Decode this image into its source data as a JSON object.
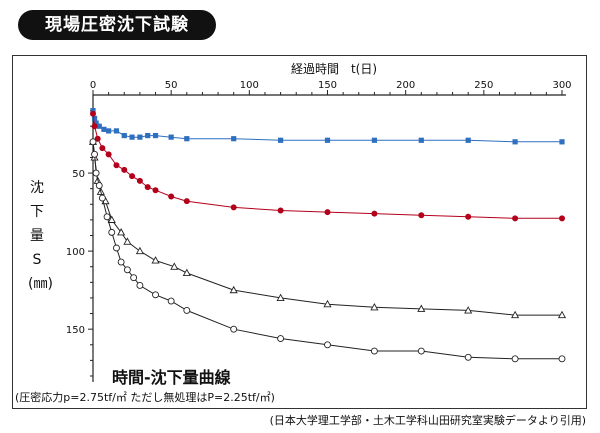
{
  "page": {
    "title": "現場圧密沈下試験",
    "note": "(圧密応力p=2.75tf/㎡ ただし無処理はP=2.25tf/㎡)",
    "source": "(日本大学理工学部・土木工学科山田研究室実験データより引用)"
  },
  "chart_data": {
    "type": "line",
    "title": "時間-沈下量曲線",
    "xlabel": "経過時間　t(日)",
    "ylabel": [
      "沈",
      "下",
      "量",
      "S",
      "(㎜)"
    ],
    "xlim": [
      0,
      300
    ],
    "ylim": [
      0,
      180
    ],
    "y_inverted": true,
    "x_axis_position": "top",
    "grid": false,
    "x_ticks": [
      0,
      50,
      100,
      150,
      200,
      250,
      300
    ],
    "y_ticks": [
      50,
      100,
      150
    ],
    "series": [
      {
        "marker": "square",
        "color": "#2e6fc0",
        "x": [
          0,
          1,
          2,
          4,
          7,
          10,
          15,
          20,
          25,
          30,
          35,
          40,
          50,
          60,
          90,
          120,
          150,
          180,
          210,
          240,
          270,
          300
        ],
        "y": [
          10,
          15,
          18,
          20,
          22,
          23,
          23,
          26,
          27,
          27,
          26,
          26,
          27,
          28,
          28,
          29,
          29,
          29,
          29,
          29,
          30,
          30
        ]
      },
      {
        "marker": "circle-filled",
        "color": "#b3001b",
        "x": [
          0,
          1,
          3,
          6,
          10,
          15,
          20,
          25,
          30,
          35,
          40,
          50,
          60,
          90,
          120,
          150,
          180,
          210,
          240,
          270,
          300
        ],
        "y": [
          12,
          20,
          28,
          34,
          38,
          45,
          48,
          52,
          55,
          59,
          61,
          65,
          68,
          72,
          74,
          75,
          76,
          77,
          78,
          79,
          79
        ]
      },
      {
        "marker": "triangle",
        "color": "#222222",
        "x": [
          0,
          1,
          3,
          5,
          8,
          12,
          18,
          22,
          30,
          40,
          52,
          60,
          90,
          120,
          150,
          180,
          210,
          240,
          270,
          300
        ],
        "y": [
          30,
          40,
          55,
          62,
          68,
          80,
          88,
          94,
          100,
          106,
          110,
          114,
          125,
          130,
          134,
          136,
          137,
          138,
          141,
          141
        ]
      },
      {
        "marker": "circle-open",
        "color": "#222222",
        "x": [
          0,
          1,
          2,
          4,
          6,
          9,
          12,
          15,
          18,
          22,
          26,
          30,
          40,
          50,
          60,
          90,
          120,
          150,
          180,
          210,
          240,
          270,
          300
        ],
        "y": [
          30,
          38,
          50,
          58,
          66,
          78,
          88,
          98,
          107,
          112,
          117,
          122,
          128,
          132,
          138,
          150,
          156,
          160,
          164,
          164,
          168,
          169,
          169
        ]
      }
    ]
  }
}
